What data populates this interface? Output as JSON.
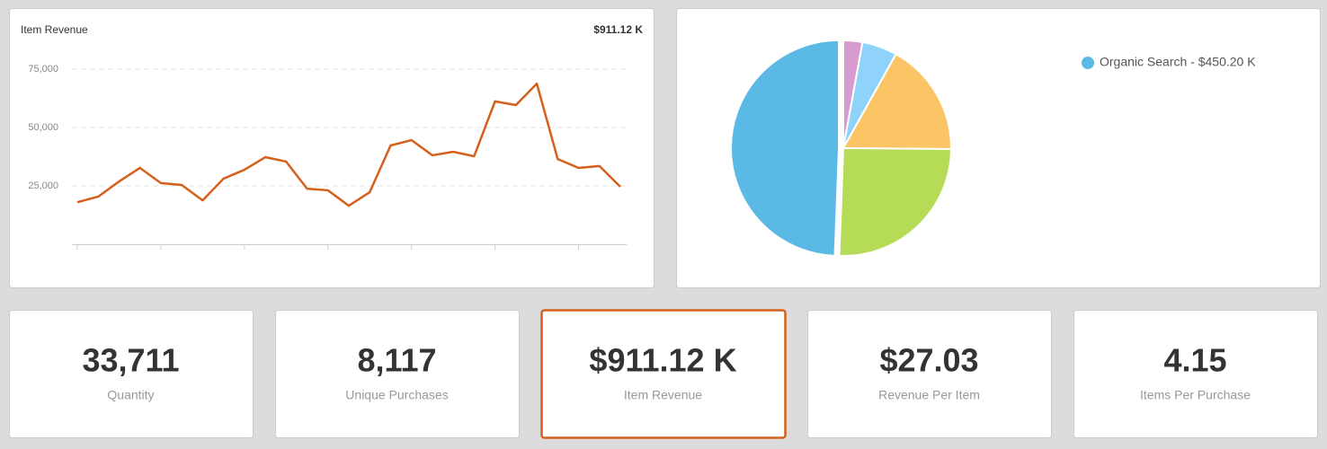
{
  "line_chart": {
    "type": "line",
    "title": "Item Revenue",
    "total": "$911.12 K",
    "categories": [
      null,
      null,
      null,
      null,
      null,
      null,
      null,
      null,
      null,
      null,
      null,
      null,
      null,
      null,
      null,
      null,
      null,
      null,
      null,
      null,
      null,
      null,
      null,
      null,
      null,
      null,
      null
    ],
    "values": [
      18000,
      20400,
      26900,
      32700,
      26200,
      25400,
      18800,
      28100,
      31900,
      37300,
      35400,
      23800,
      23100,
      16500,
      22300,
      42300,
      44600,
      38100,
      39600,
      37700,
      61200,
      59600,
      68800,
      36500,
      32700,
      33500,
      24600
    ],
    "color": "#d4601c",
    "ylim": [
      0,
      80000
    ],
    "yticks": [
      {
        "value": 25000,
        "label": "25,000"
      },
      {
        "value": 50000,
        "label": "50,000"
      },
      {
        "value": 75000,
        "label": "75,000"
      }
    ],
    "grid": true
  },
  "pie_chart": {
    "type": "pie",
    "slices": [
      {
        "value": 26,
        "color": "#d89bd0"
      },
      {
        "value": 48,
        "color": "#8fd3fb"
      },
      {
        "value": 155,
        "color": "#fbc565"
      },
      {
        "value": 232,
        "color": "#b6db57"
      },
      {
        "value": 450.2,
        "color": "#5bb9e6",
        "label": "Organic Search - $450.20 K"
      }
    ]
  },
  "kpis": [
    {
      "value": "33,711",
      "label": "Quantity"
    },
    {
      "value": "8,117",
      "label": "Unique Purchases"
    },
    {
      "value": "$911.12 K",
      "label": "Item Revenue",
      "selected": true
    },
    {
      "value": "$27.03",
      "label": "Revenue Per Item"
    },
    {
      "value": "4.15",
      "label": "Items Per Purchase"
    }
  ]
}
